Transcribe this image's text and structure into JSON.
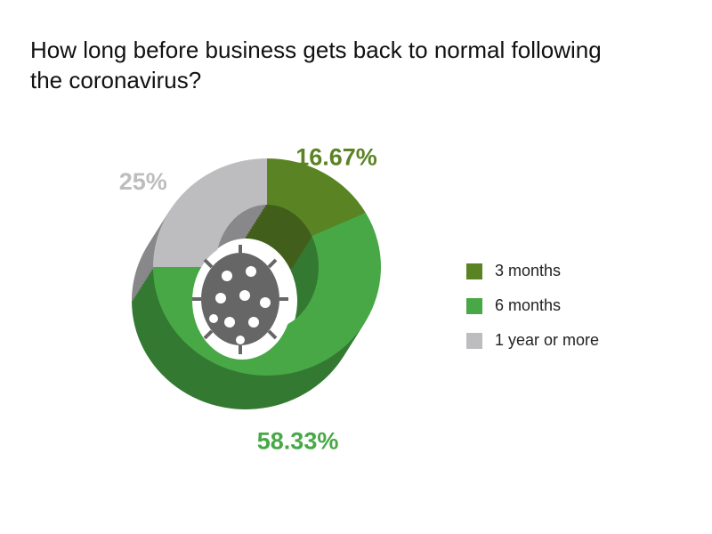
{
  "chart_data": {
    "type": "pie",
    "title": "How long before business gets back to normal following the coronavirus?",
    "categories": [
      "3 months",
      "6 months",
      "1 year or more"
    ],
    "values": [
      16.67,
      58.33,
      25
    ],
    "value_labels": [
      "16.67%",
      "58.33%",
      "25%"
    ],
    "colors": [
      "#5a8424",
      "#48a846",
      "#bdbdbf"
    ],
    "legend": "right"
  }
}
